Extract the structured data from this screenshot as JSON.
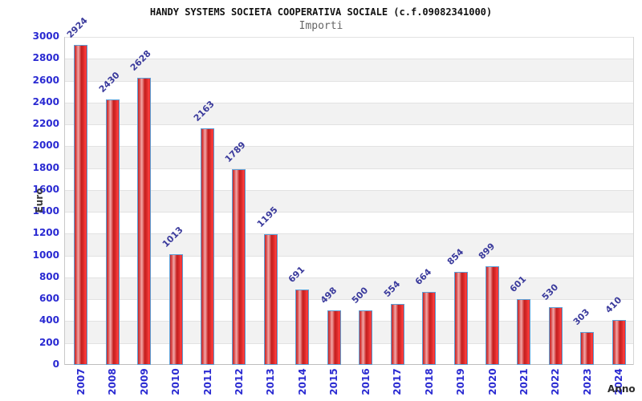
{
  "header": {
    "title": "HANDY SYSTEMS SOCIETA COOPERATIVA SOCIALE (c.f.09082341000)",
    "subtitle": "Importi"
  },
  "chart_data": {
    "type": "bar",
    "title": "HANDY SYSTEMS SOCIETA COOPERATIVA SOCIALE (c.f.09082341000)",
    "subtitle": "Importi",
    "xlabel": "Anno",
    "ylabel": "Euro",
    "categories": [
      "2007",
      "2008",
      "2009",
      "2010",
      "2011",
      "2012",
      "2013",
      "2014",
      "2015",
      "2016",
      "2017",
      "2018",
      "2019",
      "2020",
      "2021",
      "2022",
      "2023",
      "2024"
    ],
    "values": [
      2924,
      2430,
      2628,
      1013,
      2163,
      1789,
      1195,
      691,
      498,
      500,
      554,
      664,
      854,
      899,
      601,
      530,
      303,
      410
    ],
    "ylim": [
      0,
      3000
    ],
    "ytick_step": 200,
    "grid": true,
    "legend_position": "none",
    "colors": {
      "bar_fill": "#dd2222",
      "bar_border": "#5c9fd6",
      "axis_tick_label": "#2a2ad2",
      "value_label": "#3a3a9c",
      "band_gray": "#f2f2f2",
      "band_white": "#ffffff",
      "gridline": "#e2e2e2",
      "title": "#111111",
      "subtitle": "#666666",
      "axis_title": "#3a3a3a"
    }
  }
}
